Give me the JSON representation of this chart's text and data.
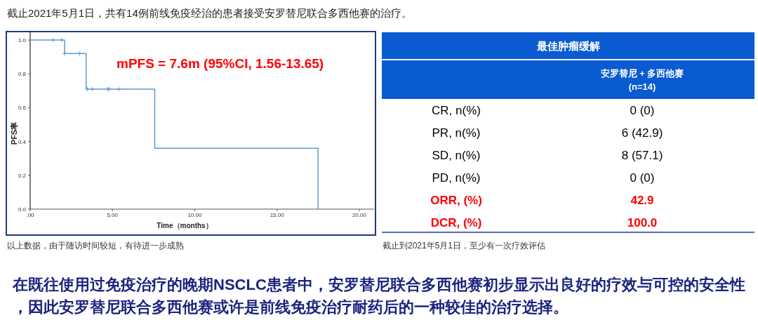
{
  "chart_data": [
    {
      "type": "step",
      "title": "截止2021年5月1日，共有14例前线免疫经治的患者接受安罗替尼联合多西他赛的治疗。",
      "xlabel": "Time（months）",
      "ylabel": "PFS率",
      "xlim": [
        0,
        20.9
      ],
      "ylim": [
        0,
        1.05
      ],
      "xticks": [
        {
          "value": 0,
          "label": ".00"
        },
        {
          "value": 5,
          "label": "5.00"
        },
        {
          "value": 10,
          "label": "10.00"
        },
        {
          "value": 15,
          "label": "15.00"
        },
        {
          "value": 20,
          "label": "20.00"
        }
      ],
      "yticks": [
        {
          "value": 0,
          "label": "0.0"
        },
        {
          "value": 0.2,
          "label": "0.2"
        },
        {
          "value": 0.4,
          "label": "0.4"
        },
        {
          "value": 0.6,
          "label": "0.6"
        },
        {
          "value": 0.8,
          "label": "0.8"
        },
        {
          "value": 1,
          "label": "1.0"
        }
      ],
      "grid": false,
      "series": [
        {
          "type": "step",
          "color": "#5b9bd5",
          "x": [
            0,
            2.09,
            3.4,
            7.57,
            17.49
          ],
          "values": [
            1,
            0.92,
            0.71,
            0.36,
            0
          ]
        },
        {
          "type": "scatter",
          "marker": "cross",
          "color": "#5b9bd5",
          "x": [
            1.4,
            1.91,
            2.09,
            3.0,
            3.47,
            3.78,
            4.72,
            4.79,
            5.38
          ],
          "values": [
            1,
            1,
            0.92,
            0.92,
            0.71,
            0.71,
            0.71,
            0.71,
            0.71
          ]
        }
      ],
      "annotations": [
        "mPFS = 7.6m (95%CI, 1.56-13.65)",
        "以上数据，由于随访时间较短，有待进一步成熟",
        "在既往使用过免疫治疗的晚期NSCLC患者中，安罗替尼联合多西他赛初步显示出良好的疗效与可控的安全性，因此安罗替尼联合多西他赛或许是前线免疫治疗耐药后的一种较佳的治疗选择。"
      ]
    },
    {
      "type": "other",
      "title": "最佳肿瘤缓解",
      "subtitle": "安罗替尼 + 多西他赛\n(n=14)",
      "categories": [
        "CR, n(%)",
        "PR, n(%)",
        "SD, n(%)",
        "PD, n(%)",
        "ORR, (%)",
        "DCR, (%)"
      ],
      "value_labels": [
        "0 (0)",
        "6 (42.9)",
        "8 (57.1)",
        "0 (0)",
        "42.9",
        "100.0"
      ],
      "colors": [
        "#000000",
        "#000000",
        "#000000",
        "#000000",
        "#ff0000",
        "#ff0000"
      ],
      "annotations": [
        "截止到2021年5月1日，至少有一次疗效评估"
      ]
    }
  ]
}
